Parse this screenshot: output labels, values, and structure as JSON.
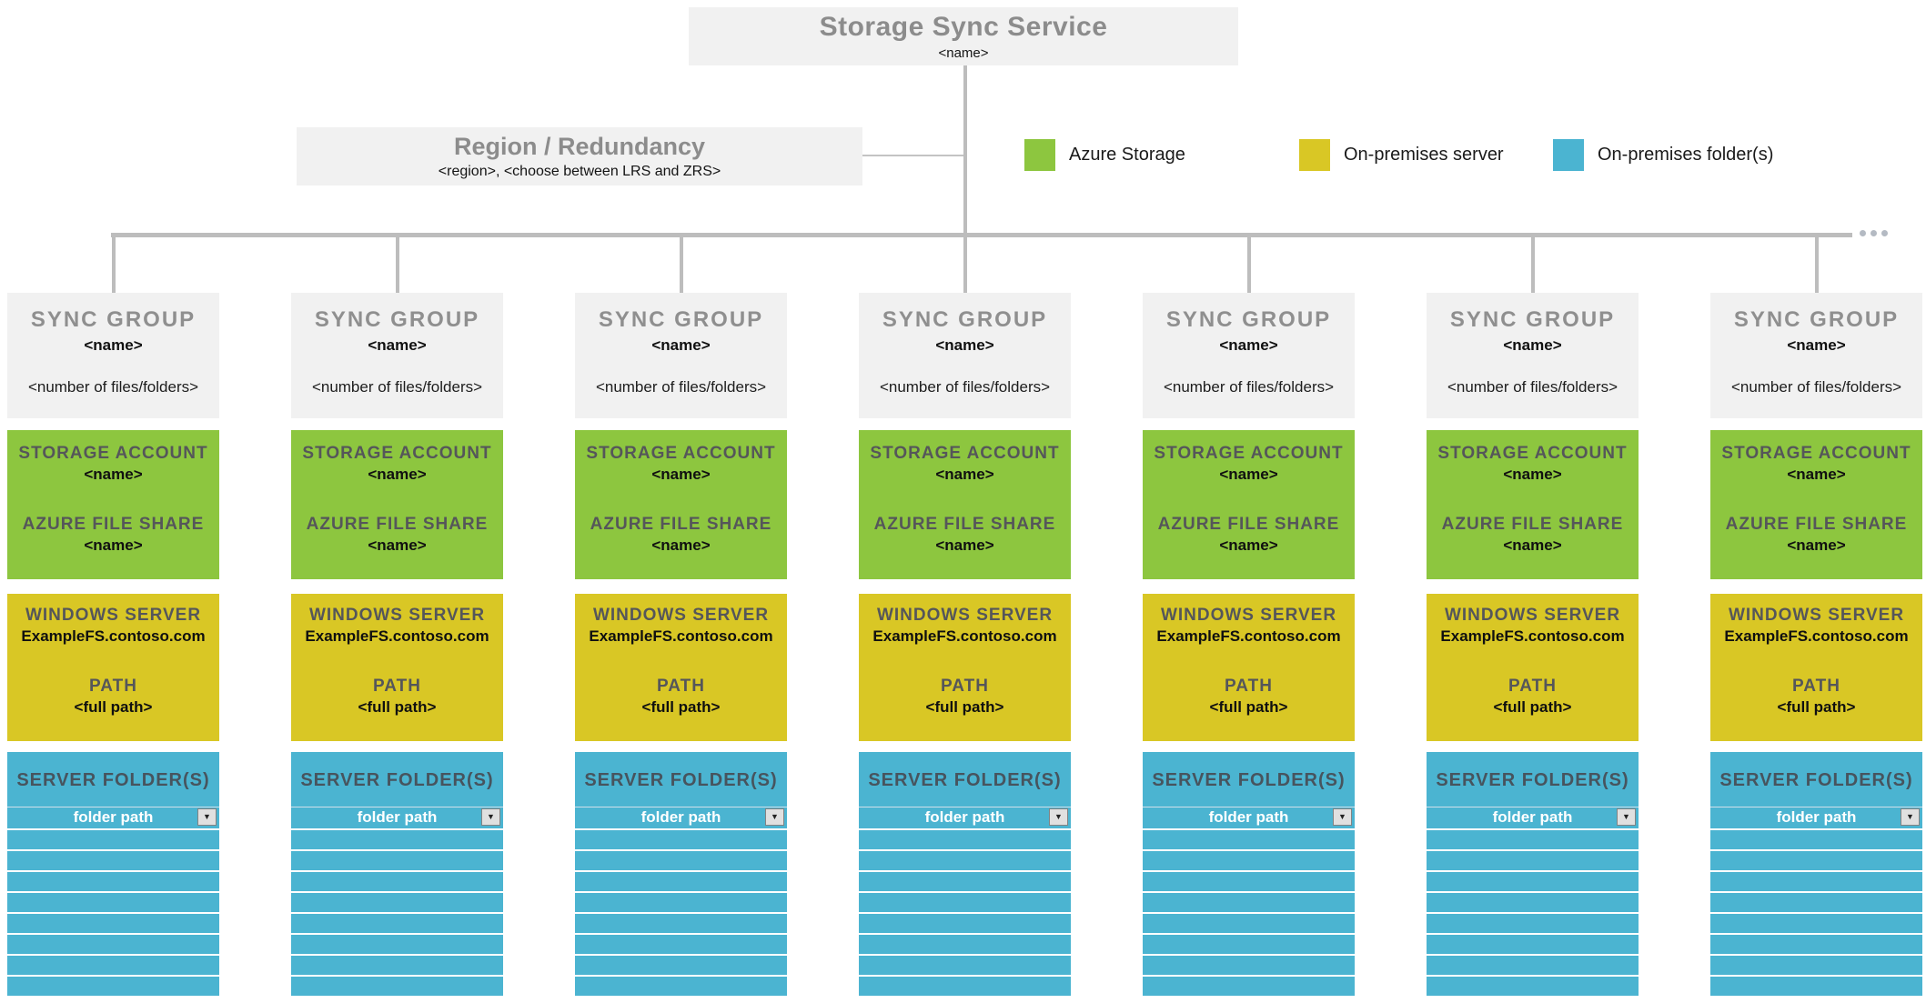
{
  "service": {
    "title": "Storage Sync Service",
    "name": "<name>"
  },
  "region": {
    "title": "Region / Redundancy",
    "details": "<region>, <choose between LRS and ZRS>"
  },
  "legend": {
    "items": [
      {
        "label": "Azure Storage",
        "color": "#8dc63f"
      },
      {
        "label": "On-premises server",
        "color": "#d9c725"
      },
      {
        "label": "On-premises folder(s)",
        "color": "#4bb4d1"
      }
    ]
  },
  "icons": {
    "dropdown_arrow": "▼"
  },
  "sync_groups": [
    {
      "title": "SYNC GROUP",
      "name": "<name>",
      "count": "<number of files/folders>",
      "storage_account_label": "STORAGE ACCOUNT",
      "storage_account_name": "<name>",
      "file_share_label": "AZURE FILE SHARE",
      "file_share_name": "<name>",
      "windows_server_label": "WINDOWS SERVER",
      "windows_server_name": "ExampleFS.contoso.com",
      "path_label": "PATH",
      "path_value": "<full path>",
      "server_folders_label": "SERVER FOLDER(S)",
      "folder_path_value": "folder path",
      "empty_folder_rows": 8
    },
    {
      "title": "SYNC GROUP",
      "name": "<name>",
      "count": "<number of files/folders>",
      "storage_account_label": "STORAGE ACCOUNT",
      "storage_account_name": "<name>",
      "file_share_label": "AZURE FILE SHARE",
      "file_share_name": "<name>",
      "windows_server_label": "WINDOWS SERVER",
      "windows_server_name": "ExampleFS.contoso.com",
      "path_label": "PATH",
      "path_value": "<full path>",
      "server_folders_label": "SERVER FOLDER(S)",
      "folder_path_value": "folder path",
      "empty_folder_rows": 8
    },
    {
      "title": "SYNC GROUP",
      "name": "<name>",
      "count": "<number of files/folders>",
      "storage_account_label": "STORAGE ACCOUNT",
      "storage_account_name": "<name>",
      "file_share_label": "AZURE FILE SHARE",
      "file_share_name": "<name>",
      "windows_server_label": "WINDOWS SERVER",
      "windows_server_name": "ExampleFS.contoso.com",
      "path_label": "PATH",
      "path_value": "<full path>",
      "server_folders_label": "SERVER FOLDER(S)",
      "folder_path_value": "folder path",
      "empty_folder_rows": 8
    },
    {
      "title": "SYNC GROUP",
      "name": "<name>",
      "count": "<number of files/folders>",
      "storage_account_label": "STORAGE ACCOUNT",
      "storage_account_name": "<name>",
      "file_share_label": "AZURE FILE SHARE",
      "file_share_name": "<name>",
      "windows_server_label": "WINDOWS SERVER",
      "windows_server_name": "ExampleFS.contoso.com",
      "path_label": "PATH",
      "path_value": "<full path>",
      "server_folders_label": "SERVER FOLDER(S)",
      "folder_path_value": "folder path",
      "empty_folder_rows": 8
    },
    {
      "title": "SYNC GROUP",
      "name": "<name>",
      "count": "<number of files/folders>",
      "storage_account_label": "STORAGE ACCOUNT",
      "storage_account_name": "<name>",
      "file_share_label": "AZURE FILE SHARE",
      "file_share_name": "<name>",
      "windows_server_label": "WINDOWS SERVER",
      "windows_server_name": "ExampleFS.contoso.com",
      "path_label": "PATH",
      "path_value": "<full path>",
      "server_folders_label": "SERVER FOLDER(S)",
      "folder_path_value": "folder path",
      "empty_folder_rows": 8
    },
    {
      "title": "SYNC GROUP",
      "name": "<name>",
      "count": "<number of files/folders>",
      "storage_account_label": "STORAGE ACCOUNT",
      "storage_account_name": "<name>",
      "file_share_label": "AZURE FILE SHARE",
      "file_share_name": "<name>",
      "windows_server_label": "WINDOWS SERVER",
      "windows_server_name": "ExampleFS.contoso.com",
      "path_label": "PATH",
      "path_value": "<full path>",
      "server_folders_label": "SERVER FOLDER(S)",
      "folder_path_value": "folder path",
      "empty_folder_rows": 8
    },
    {
      "title": "SYNC GROUP",
      "name": "<name>",
      "count": "<number of files/folders>",
      "storage_account_label": "STORAGE ACCOUNT",
      "storage_account_name": "<name>",
      "file_share_label": "AZURE FILE SHARE",
      "file_share_name": "<name>",
      "windows_server_label": "WINDOWS SERVER",
      "windows_server_name": "ExampleFS.contoso.com",
      "path_label": "PATH",
      "path_value": "<full path>",
      "server_folders_label": "SERVER FOLDER(S)",
      "folder_path_value": "folder path",
      "empty_folder_rows": 8
    }
  ]
}
